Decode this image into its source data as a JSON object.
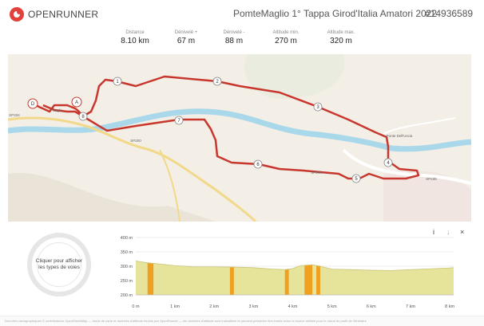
{
  "header": {
    "brand": "OPENRUNNER",
    "title": "PomteMaglio 1° Tappa Girod'Italia Amatori 2022",
    "route_id": "#14936589"
  },
  "stats": [
    {
      "label": "Distance",
      "value": "8.10 km"
    },
    {
      "label": "Dénivelé +",
      "value": "67 m"
    },
    {
      "label": "Dénivelé -",
      "value": "88 m"
    },
    {
      "label": "Altitude min.",
      "value": "270 m"
    },
    {
      "label": "Altitude max.",
      "value": "320 m"
    }
  ],
  "map": {
    "start_marker": "D",
    "end_marker": "A",
    "end_marker_2": "A",
    "waypoints": [
      "1",
      "2",
      "3",
      "4",
      "5",
      "6",
      "7",
      "8"
    ],
    "place_labels": [
      "Ponte Dell'Uscia",
      "SP204",
      "Naglio",
      "SP200",
      "SP200",
      "SP235"
    ],
    "route_color": "#c8372d",
    "river_color": "#a9d8ea",
    "road_color": "#f2d98a"
  },
  "profile": {
    "circle_text": "Cliquer pour afficher les types de voies",
    "info_icon": "i",
    "download_icon": "↓",
    "close_icon": "×"
  },
  "chart_data": {
    "type": "area",
    "y_ticks": [
      "400 m",
      "350 m",
      "300 m",
      "250 m",
      "200 m"
    ],
    "x_ticks": [
      "0 m",
      "1 km",
      "2 km",
      "3 km",
      "4 km",
      "5 km",
      "6 km",
      "7 km",
      "8 km"
    ],
    "ylim": [
      200,
      400
    ],
    "xlim": [
      0,
      8.1
    ],
    "x": [
      0,
      0.3,
      0.6,
      1.0,
      1.5,
      2.0,
      2.5,
      3.0,
      3.5,
      3.8,
      4.0,
      4.2,
      4.5,
      4.7,
      5.0,
      5.5,
      6.0,
      6.5,
      7.0,
      7.5,
      8.0,
      8.1
    ],
    "elevation": [
      318,
      312,
      308,
      302,
      298,
      298,
      297,
      295,
      290,
      288,
      292,
      302,
      305,
      300,
      290,
      288,
      286,
      285,
      288,
      291,
      294,
      295
    ],
    "fill_color": "#e6e39a",
    "steep_color": "#f0a020",
    "steep_segments": [
      [
        0.3,
        0.45
      ],
      [
        2.4,
        2.5
      ],
      [
        3.8,
        3.9
      ],
      [
        4.3,
        4.5
      ],
      [
        4.6,
        4.7
      ]
    ]
  },
  "footer": {
    "text": "Données cartographiques © contributeurs OpenStreetMap — fonds de carte et données d'altitude fournis par OpenRunner — les données d'altitude sont indicatives et peuvent présenter des écarts selon la source utilisée pour le calcul du profil de l'itinéraire"
  }
}
